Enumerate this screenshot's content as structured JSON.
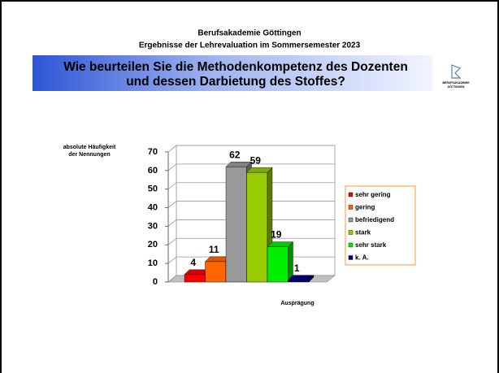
{
  "header": {
    "institution": "Berufsakademie Göttingen",
    "subtitle": "Ergebnisse der Lehrevaluation im Sommersemester 2023",
    "question": [
      "Wie beurteilen Sie die Methodenkompetenz des Dozenten",
      "und dessen Darbietung des Stoffes?"
    ],
    "logo": [
      "BERUFSAKADEMIE",
      "GÖTTINGEN"
    ]
  },
  "chart_data": {
    "type": "bar3d",
    "y_label": [
      "absolute Häufigkeit",
      "der Nennungen"
    ],
    "x_label": "Ausprägung",
    "categories": [
      "sehr gering",
      "gering",
      "befriedigend",
      "stark",
      "sehr stark",
      "k. A."
    ],
    "values": [
      4,
      11,
      62,
      59,
      19,
      1
    ],
    "colors": [
      "#ff0000",
      "#ff6600",
      "#999999",
      "#99cc00",
      "#00ee00",
      "#000080"
    ],
    "ylim": [
      0,
      70
    ],
    "yticks": [
      0,
      10,
      20,
      30,
      40,
      50,
      60,
      70
    ],
    "grid": true,
    "legend": "right"
  }
}
